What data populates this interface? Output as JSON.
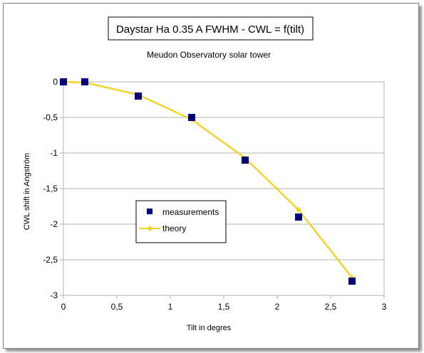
{
  "chart_data": {
    "type": "line",
    "title": "Daystar Ha 0.35 A FWHM - CWL = f(tilt)",
    "subtitle": "Meudon Observatory solar tower",
    "xlabel": "Tilt in degres",
    "ylabel": "CWL shift in Angström",
    "xlim": [
      0,
      3
    ],
    "ylim": [
      -3,
      0
    ],
    "x_ticks": [
      0,
      0.5,
      1,
      1.5,
      2,
      2.5,
      3
    ],
    "x_tick_labels": [
      "0",
      "0,5",
      "1",
      "1,5",
      "2",
      "2,5",
      "3"
    ],
    "y_ticks": [
      0,
      -0.5,
      -1,
      -1.5,
      -2,
      -2.5,
      -3
    ],
    "y_tick_labels": [
      "0",
      "-0,5",
      "-1",
      "-1,5",
      "-2",
      "-2,5",
      "-3"
    ],
    "grid": true,
    "legend_position": "center-left",
    "series": [
      {
        "name": "measurements",
        "marker": "square",
        "line": false,
        "color": "#000080",
        "x": [
          0,
          0.2,
          0.7,
          1.2,
          1.7,
          2.2,
          2.7
        ],
        "y": [
          0,
          0,
          -0.2,
          -0.5,
          -1.1,
          -1.9,
          -2.8
        ]
      },
      {
        "name": "theory",
        "marker": "diamond",
        "line": true,
        "color": "#f5d327",
        "x": [
          0,
          0.2,
          0.7,
          1.2,
          1.7,
          2.2,
          2.7
        ],
        "y": [
          0,
          -0.01,
          -0.18,
          -0.53,
          -1.07,
          -1.8,
          -2.75
        ]
      }
    ]
  }
}
